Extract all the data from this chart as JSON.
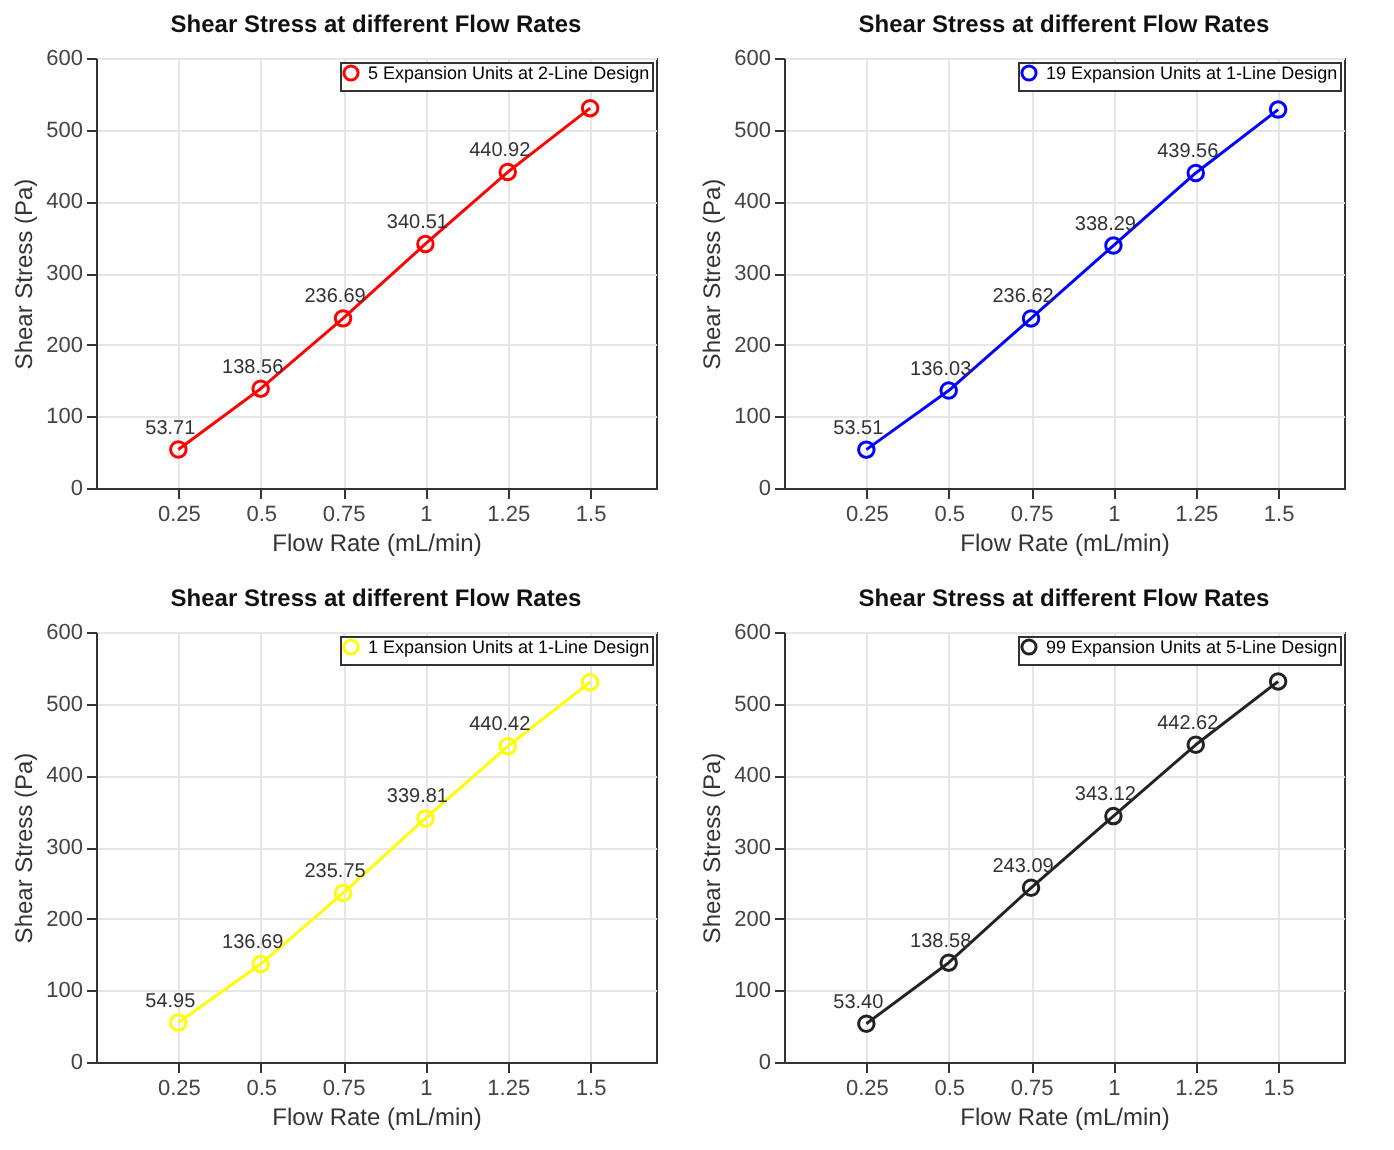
{
  "chart_data": [
    {
      "type": "line",
      "title": "Shear Stress at different Flow Rates",
      "xlabel": "Flow Rate (mL/min)",
      "ylabel": "Shear Stress (Pa)",
      "x": [
        0.25,
        0.5,
        0.75,
        1,
        1.25,
        1.5
      ],
      "xlim": [
        0,
        1.7
      ],
      "xticks": [
        0.25,
        0.5,
        0.75,
        1,
        1.25,
        1.5
      ],
      "ylim": [
        0,
        600
      ],
      "yticks": [
        0,
        100,
        200,
        300,
        400,
        500,
        600
      ],
      "grid": true,
      "legend": "top right",
      "marker": "circle",
      "series": [
        {
          "name": "5 Expansion Units at 2-Line Design",
          "color": "#ff0000",
          "values": [
            53.71,
            138.56,
            236.69,
            340.51,
            440.92,
            530
          ],
          "value_labels": [
            "53.71",
            "138.56",
            "236.69",
            "340.51",
            "440.92",
            null
          ]
        }
      ]
    },
    {
      "type": "line",
      "title": "Shear Stress at different Flow Rates",
      "xlabel": "Flow Rate (mL/min)",
      "ylabel": "Shear Stress (Pa)",
      "x": [
        0.25,
        0.5,
        0.75,
        1,
        1.25,
        1.5
      ],
      "xlim": [
        0,
        1.7
      ],
      "xticks": [
        0.25,
        0.5,
        0.75,
        1,
        1.25,
        1.5
      ],
      "ylim": [
        0,
        600
      ],
      "yticks": [
        0,
        100,
        200,
        300,
        400,
        500,
        600
      ],
      "grid": true,
      "legend": "top right",
      "marker": "circle",
      "series": [
        {
          "name": "19 Expansion Units at 1-Line Design",
          "color": "#0000ff",
          "values": [
            53.51,
            136.03,
            236.62,
            338.29,
            439.56,
            528
          ],
          "value_labels": [
            "53.51",
            "136.03",
            "236.62",
            "338.29",
            "439.56",
            null
          ]
        }
      ]
    },
    {
      "type": "line",
      "title": "Shear Stress at different Flow Rates",
      "xlabel": "Flow Rate (mL/min)",
      "ylabel": "Shear Stress (Pa)",
      "x": [
        0.25,
        0.5,
        0.75,
        1,
        1.25,
        1.5
      ],
      "xlim": [
        0,
        1.7
      ],
      "xticks": [
        0.25,
        0.5,
        0.75,
        1,
        1.25,
        1.5
      ],
      "ylim": [
        0,
        600
      ],
      "yticks": [
        0,
        100,
        200,
        300,
        400,
        500,
        600
      ],
      "grid": true,
      "legend": "top right",
      "marker": "circle",
      "series": [
        {
          "name": "1 Expansion Units at 1-Line Design",
          "color": "#ffff00",
          "values": [
            54.95,
            136.69,
            235.75,
            339.81,
            440.42,
            530
          ],
          "value_labels": [
            "54.95",
            "136.69",
            "235.75",
            "339.81",
            "440.42",
            null
          ]
        }
      ]
    },
    {
      "type": "line",
      "title": "Shear Stress at different Flow Rates",
      "xlabel": "Flow Rate (mL/min)",
      "ylabel": "Shear Stress (Pa)",
      "x": [
        0.25,
        0.5,
        0.75,
        1,
        1.25,
        1.5
      ],
      "xlim": [
        0,
        1.7
      ],
      "xticks": [
        0.25,
        0.5,
        0.75,
        1,
        1.25,
        1.5
      ],
      "ylim": [
        0,
        600
      ],
      "yticks": [
        0,
        100,
        200,
        300,
        400,
        500,
        600
      ],
      "grid": true,
      "legend": "top right",
      "marker": "circle",
      "series": [
        {
          "name": "99 Expansion Units at 5-Line Design",
          "color": "#222222",
          "values": [
            53.4,
            138.58,
            243.09,
            343.12,
            442.62,
            531
          ],
          "value_labels": [
            "53.40",
            "138.58",
            "243.09",
            "343.12",
            "442.62",
            null
          ]
        }
      ]
    }
  ]
}
